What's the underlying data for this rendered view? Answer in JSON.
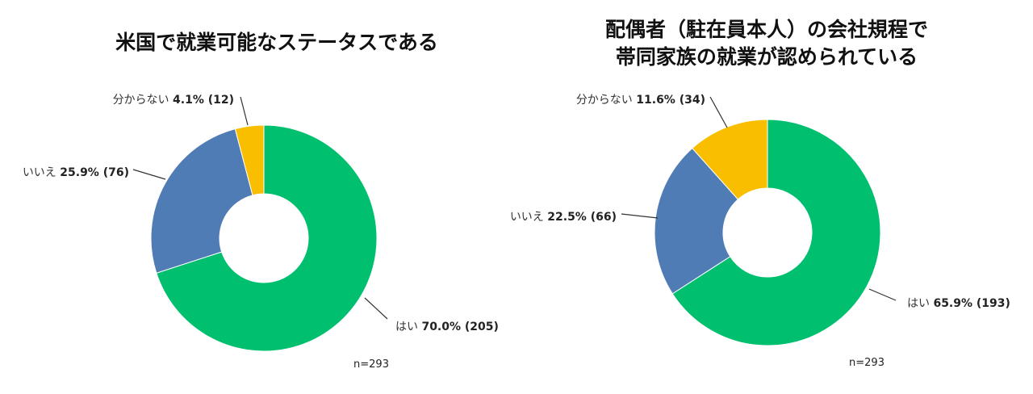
{
  "colors": {
    "yes": "#00BF6F",
    "no": "#507CB6",
    "unknown": "#F9BE00"
  },
  "chart_data": [
    {
      "type": "pie",
      "title": "米国で就業可能なステータスである",
      "slices": [
        {
          "key": "yes",
          "label": "はい",
          "percent": 70.0,
          "percent_text": "70.0%",
          "count_text": "(205)"
        },
        {
          "key": "no",
          "label": "いいえ",
          "percent": 25.9,
          "percent_text": "25.9%",
          "count_text": "(76)"
        },
        {
          "key": "unknown",
          "label": "分からない",
          "percent": 4.1,
          "percent_text": "4.1%",
          "count_text": "(12)"
        }
      ],
      "n_text": "n=293"
    },
    {
      "type": "pie",
      "title_lines": [
        "配偶者（駐在員本人）の会社規程で",
        "帯同家族の就業が認められている"
      ],
      "slices": [
        {
          "key": "yes",
          "label": "はい",
          "percent": 65.9,
          "percent_text": "65.9%",
          "count_text": "(193)"
        },
        {
          "key": "no",
          "label": "いいえ",
          "percent": 22.5,
          "percent_text": "22.5%",
          "count_text": "(66)"
        },
        {
          "key": "unknown",
          "label": "分からない",
          "percent": 11.6,
          "percent_text": "11.6%",
          "count_text": "(34)"
        }
      ],
      "n_text": "n=293"
    }
  ]
}
